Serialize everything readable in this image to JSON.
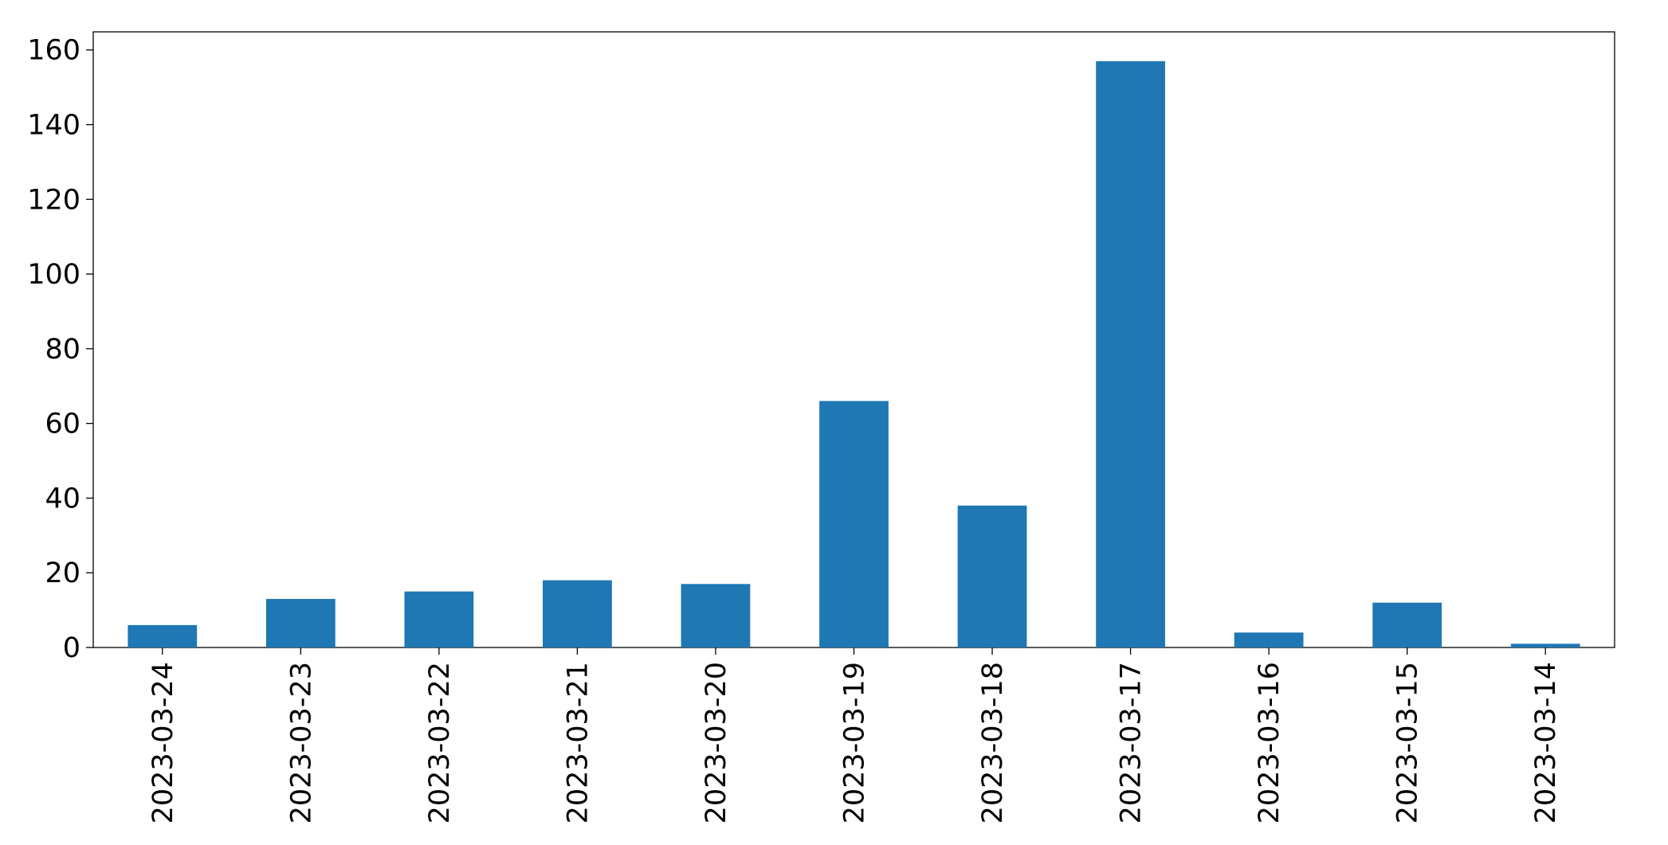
{
  "chart_data": {
    "type": "bar",
    "categories": [
      "2023-03-24",
      "2023-03-23",
      "2023-03-22",
      "2023-03-21",
      "2023-03-20",
      "2023-03-19",
      "2023-03-18",
      "2023-03-17",
      "2023-03-16",
      "2023-03-15",
      "2023-03-14"
    ],
    "values": [
      6,
      13,
      15,
      18,
      17,
      66,
      38,
      157,
      4,
      12,
      1
    ],
    "color": "#1f77b4",
    "ylim": [
      0,
      164.85
    ],
    "yticks": [
      0,
      20,
      40,
      60,
      80,
      100,
      120,
      140,
      160
    ],
    "grid": false
  }
}
